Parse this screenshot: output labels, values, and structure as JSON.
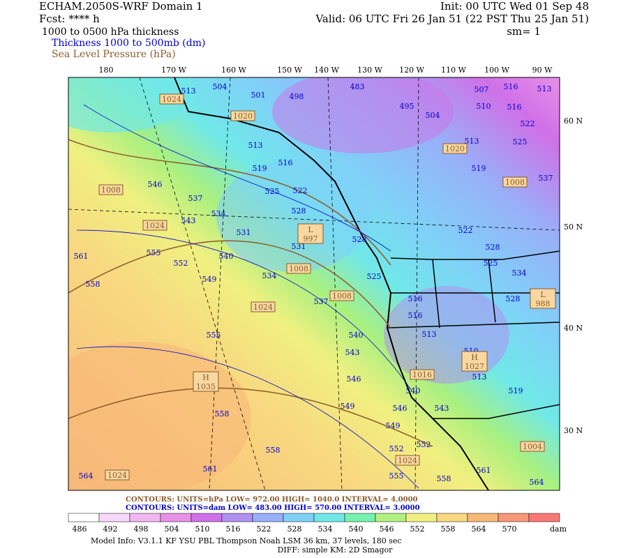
{
  "header": {
    "left": [
      "ECHAM.2050S-WRF Domain 1",
      "Fcst: **** h",
      "1000 to 0500 hPa thickness",
      "Thickness 1000 to 500mb (dm)",
      "Sea Level Pressure (hPa)"
    ],
    "right": [
      "Init: 00 UTC Wed 01 Sep 48",
      "Valid: 06 UTC Fri 26 Jan 51 (22 PST Thu 25 Jan 51)",
      "sm= 1"
    ]
  },
  "map": {
    "lon_labels": [
      "180",
      "170 W",
      "160 W",
      "150 W",
      "140 W",
      "130 W",
      "120 W",
      "110 W",
      "100 W",
      "90 W"
    ],
    "lat_labels": [
      "60 N",
      "50 N",
      "40 N",
      "30 N"
    ],
    "thickness_labels": [
      "513",
      "504",
      "501",
      "498",
      "483",
      "495",
      "504",
      "507",
      "510",
      "516",
      "516",
      "513",
      "522",
      "525",
      "513",
      "519",
      "513",
      "516",
      "519",
      "525",
      "522",
      "528",
      "531",
      "531",
      "534",
      "537",
      "543",
      "546",
      "540",
      "534",
      "537",
      "549",
      "552",
      "555",
      "558",
      "561",
      "555",
      "558",
      "558",
      "561",
      "564",
      "525",
      "528",
      "522",
      "528",
      "525",
      "534",
      "528",
      "537",
      "516",
      "516",
      "513",
      "510",
      "513",
      "519",
      "540",
      "543",
      "546",
      "549",
      "549",
      "540",
      "546",
      "543",
      "552",
      "555",
      "558",
      "561",
      "564",
      "552"
    ],
    "pressure_labels": [
      "1024",
      "1020",
      "1008",
      "1024",
      "1008",
      "1024",
      "1008",
      "1020",
      "1008",
      "1024",
      "1024",
      "1004",
      "1016"
    ],
    "centers": [
      {
        "letter": "L",
        "value": "997"
      },
      {
        "letter": "H",
        "value": "1035"
      },
      {
        "letter": "H",
        "value": "1027"
      },
      {
        "letter": "L",
        "value": "988"
      }
    ]
  },
  "contours": [
    {
      "text": "CONTOURS:  UNITS=hPa  LOW=  972.00       HIGH= 1040.0      INTERVAL=   4.0000",
      "color": "#8b5a2b"
    },
    {
      "text": "CONTOURS:  UNITS=dam  LOW=  483.00       HIGH=  570.00     INTERVAL=   3.0000",
      "color": "#0000cc"
    }
  ],
  "colorbar": {
    "values": [
      486,
      492,
      498,
      504,
      510,
      516,
      522,
      528,
      534,
      540,
      546,
      552,
      558,
      564,
      570
    ],
    "unit": "dam",
    "colors": [
      "#ffffff",
      "#f8d8f8",
      "#f0b8f0",
      "#e890e8",
      "#d070e8",
      "#b090f0",
      "#98b0f8",
      "#80d0f8",
      "#70e8e8",
      "#78f0b0",
      "#b0f080",
      "#f0f080",
      "#f8d880",
      "#f8b878",
      "#f89878",
      "#f87878"
    ]
  },
  "footer": [
    "Model Info: V3.1.1    KF      YSU PBL   Thompson     Noah LSM   36 km,    37 levels,   180 sec",
    "DIFF: simple KM: 2D Smagor"
  ]
}
